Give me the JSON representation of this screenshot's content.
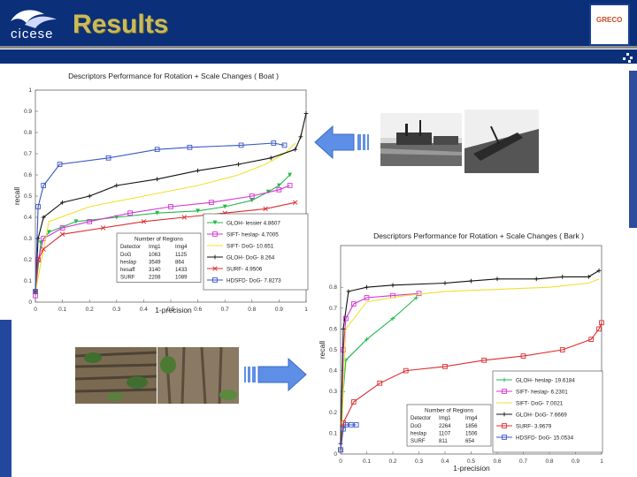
{
  "header": {
    "title": "Results",
    "logo_text": "cicese",
    "partner_logo_text": "GRECO"
  },
  "colors": {
    "header_bg": "#0b2f79",
    "title_gold": "#c9bb5b",
    "arrow_blue": "#5e8fe6"
  },
  "images": [
    {
      "name": "boat-scene",
      "description": "boat-scene"
    },
    {
      "name": "bark-texture",
      "description": "bark-texture"
    }
  ],
  "chart_data": [
    {
      "type": "line",
      "title": "Descriptors Performance for Rotation + Scale Changes ( Boat )",
      "xlabel": "1-precision",
      "ylabel": "recall",
      "xlim": [
        0,
        1
      ],
      "ylim": [
        0,
        1
      ],
      "xticks": [
        "0",
        "0.1",
        "0.2",
        "0.3",
        "0.4",
        "0.5",
        "0.6",
        "0.7",
        "0.8",
        "0.9",
        "1"
      ],
      "yticks": [
        "0",
        "0.1",
        "0.2",
        "0.3",
        "0.4",
        "0.5",
        "0.6",
        "0.7",
        "0.8",
        "0.9",
        "1"
      ],
      "legend_position": "right-center",
      "series": [
        {
          "name": "GLOH- lessier 4.8607",
          "color": "#22b94a",
          "marker": "v",
          "points": [
            [
              0,
              0.05
            ],
            [
              0.02,
              0.28
            ],
            [
              0.05,
              0.33
            ],
            [
              0.15,
              0.38
            ],
            [
              0.3,
              0.4
            ],
            [
              0.45,
              0.42
            ],
            [
              0.6,
              0.43
            ],
            [
              0.7,
              0.45
            ],
            [
              0.8,
              0.48
            ],
            [
              0.86,
              0.52
            ],
            [
              0.9,
              0.55
            ],
            [
              0.94,
              0.6
            ]
          ]
        },
        {
          "name": "SIFT- heslap- 4.7005",
          "color": "#d633d6",
          "marker": "square",
          "points": [
            [
              0,
              0.03
            ],
            [
              0.01,
              0.2
            ],
            [
              0.03,
              0.3
            ],
            [
              0.1,
              0.35
            ],
            [
              0.2,
              0.38
            ],
            [
              0.35,
              0.42
            ],
            [
              0.5,
              0.45
            ],
            [
              0.65,
              0.47
            ],
            [
              0.8,
              0.5
            ],
            [
              0.9,
              0.53
            ],
            [
              0.94,
              0.55
            ]
          ]
        },
        {
          "name": "SIFT- DoG- 10.651",
          "color": "#f0e030",
          "marker": "none",
          "points": [
            [
              0,
              0.05
            ],
            [
              0.05,
              0.38
            ],
            [
              0.2,
              0.45
            ],
            [
              0.4,
              0.5
            ],
            [
              0.6,
              0.55
            ],
            [
              0.75,
              0.6
            ],
            [
              0.85,
              0.65
            ],
            [
              0.92,
              0.7
            ],
            [
              0.96,
              0.75
            ]
          ]
        },
        {
          "name": "GLOH- DoG- 8.264",
          "color": "#111111",
          "marker": "+",
          "points": [
            [
              0,
              0.05
            ],
            [
              0.01,
              0.3
            ],
            [
              0.03,
              0.4
            ],
            [
              0.1,
              0.47
            ],
            [
              0.2,
              0.5
            ],
            [
              0.3,
              0.55
            ],
            [
              0.45,
              0.58
            ],
            [
              0.6,
              0.62
            ],
            [
              0.75,
              0.65
            ],
            [
              0.87,
              0.68
            ],
            [
              0.96,
              0.72
            ],
            [
              0.98,
              0.78
            ],
            [
              1.0,
              0.89
            ]
          ]
        },
        {
          "name": "SURF- 4.9506",
          "color": "#dd2c2c",
          "marker": "x",
          "points": [
            [
              0,
              0.05
            ],
            [
              0.01,
              0.2
            ],
            [
              0.03,
              0.25
            ],
            [
              0.1,
              0.32
            ],
            [
              0.25,
              0.35
            ],
            [
              0.4,
              0.38
            ],
            [
              0.55,
              0.4
            ],
            [
              0.7,
              0.42
            ],
            [
              0.85,
              0.44
            ],
            [
              0.96,
              0.47
            ]
          ]
        },
        {
          "name": "HDSFD- DoG- 7.8273",
          "color": "#3856c8",
          "marker": "square",
          "points": [
            [
              0,
              0.05
            ],
            [
              0.01,
              0.45
            ],
            [
              0.03,
              0.55
            ],
            [
              0.09,
              0.65
            ],
            [
              0.27,
              0.68
            ],
            [
              0.45,
              0.72
            ],
            [
              0.57,
              0.73
            ],
            [
              0.76,
              0.74
            ],
            [
              0.88,
              0.75
            ],
            [
              0.92,
              0.74
            ]
          ]
        }
      ],
      "regions_table": {
        "title": "Number of Regions",
        "columns": [
          "Detector",
          "Img1",
          "Img4"
        ],
        "rows": [
          [
            "DoG",
            "1063",
            "1125"
          ],
          [
            "heslap",
            "3549",
            "864"
          ],
          [
            "hesaff",
            "3140",
            "1433"
          ],
          [
            "SURF",
            "2208",
            "1089"
          ]
        ]
      }
    },
    {
      "type": "line",
      "title": "Descriptors Performance for Rotation + Scale Changes ( Bark )",
      "xlabel": "1-precision",
      "ylabel": "recall",
      "xlim": [
        0,
        1
      ],
      "ylim": [
        0,
        1
      ],
      "xticks": [
        "0",
        "0.1",
        "0.2",
        "0.3",
        "0.4",
        "0.5",
        "0.6",
        "0.7",
        "0.8",
        "0.9",
        "1"
      ],
      "yticks": [
        "0",
        "0.1",
        "0.2",
        "0.3",
        "0.4",
        "0.5",
        "0.6",
        "0.7",
        "0.8"
      ],
      "legend_position": "bottom-right",
      "series": [
        {
          "name": "GLOH- heslap- 19.6184",
          "color": "#22b94a",
          "marker": "+",
          "points": [
            [
              0,
              0.02
            ],
            [
              0.01,
              0.3
            ],
            [
              0.02,
              0.45
            ],
            [
              0.1,
              0.55
            ],
            [
              0.2,
              0.65
            ],
            [
              0.29,
              0.75
            ]
          ]
        },
        {
          "name": "SIFT- heslap- 6.2301",
          "color": "#d633d6",
          "marker": "square",
          "points": [
            [
              0,
              0.02
            ],
            [
              0.01,
              0.5
            ],
            [
              0.02,
              0.65
            ],
            [
              0.05,
              0.72
            ],
            [
              0.1,
              0.75
            ],
            [
              0.2,
              0.76
            ],
            [
              0.3,
              0.77
            ]
          ]
        },
        {
          "name": "SIFT- DoG- 7.0021",
          "color": "#f0e030",
          "marker": "none",
          "points": [
            [
              0,
              0.02
            ],
            [
              0.02,
              0.6
            ],
            [
              0.1,
              0.73
            ],
            [
              0.25,
              0.76
            ],
            [
              0.4,
              0.78
            ],
            [
              0.6,
              0.79
            ],
            [
              0.8,
              0.8
            ],
            [
              0.95,
              0.82
            ],
            [
              0.99,
              0.84
            ]
          ]
        },
        {
          "name": "GLOH- DoG- 7.6669",
          "color": "#111111",
          "marker": "+",
          "points": [
            [
              0,
              0.05
            ],
            [
              0.01,
              0.6
            ],
            [
              0.03,
              0.78
            ],
            [
              0.1,
              0.8
            ],
            [
              0.2,
              0.81
            ],
            [
              0.4,
              0.82
            ],
            [
              0.5,
              0.83
            ],
            [
              0.6,
              0.84
            ],
            [
              0.75,
              0.84
            ],
            [
              0.85,
              0.85
            ],
            [
              0.95,
              0.85
            ],
            [
              0.99,
              0.88
            ]
          ]
        },
        {
          "name": "SURF- 3.9679",
          "color": "#dd2c2c",
          "marker": "square",
          "points": [
            [
              0,
              0.02
            ],
            [
              0.01,
              0.15
            ],
            [
              0.05,
              0.25
            ],
            [
              0.15,
              0.34
            ],
            [
              0.25,
              0.4
            ],
            [
              0.4,
              0.42
            ],
            [
              0.55,
              0.45
            ],
            [
              0.7,
              0.47
            ],
            [
              0.85,
              0.5
            ],
            [
              0.96,
              0.55
            ],
            [
              0.99,
              0.6
            ],
            [
              1.0,
              0.63
            ]
          ]
        },
        {
          "name": "HDSFD- DoG- 15.0534",
          "color": "#3856c8",
          "marker": "square",
          "points": [
            [
              0,
              0.02
            ],
            [
              0.01,
              0.12
            ],
            [
              0.02,
              0.14
            ],
            [
              0.04,
              0.14
            ],
            [
              0.06,
              0.14
            ]
          ]
        }
      ],
      "regions_table": {
        "title": "Number of Regions",
        "columns": [
          "Detector",
          "Img1",
          "Img4"
        ],
        "rows": [
          [
            "DoG",
            "2264",
            "1856"
          ],
          [
            "heslap",
            "1107",
            "1506"
          ],
          [
            "SURF",
            "811",
            "654"
          ]
        ]
      }
    }
  ]
}
